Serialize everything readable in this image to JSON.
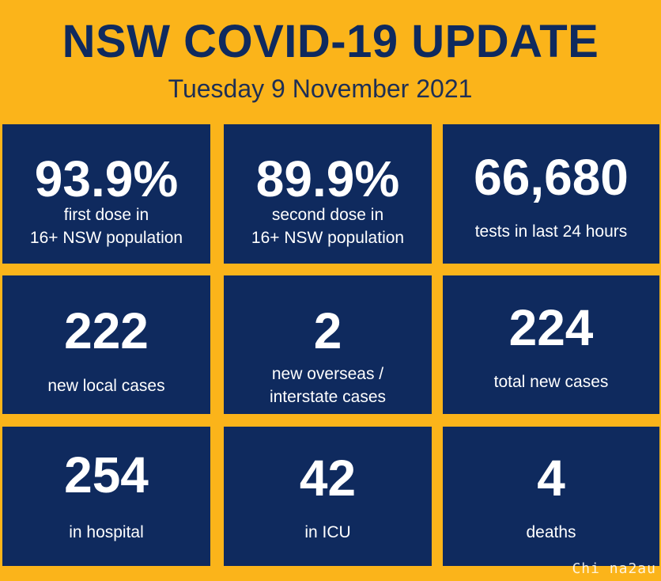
{
  "header": {
    "title": "NSW COVID-19 UPDATE",
    "date": "Tuesday 9 November 2021"
  },
  "tiles": [
    {
      "value": "93.9%",
      "label_line1": "first dose in",
      "label_line2": "16+ NSW population"
    },
    {
      "value": "89.9%",
      "label_line1": "second dose in",
      "label_line2": "16+ NSW population"
    },
    {
      "value": "66,680",
      "label_line1": "tests in last 24 hours",
      "label_line2": ""
    },
    {
      "value": "222",
      "label_line1": "new local cases",
      "label_line2": ""
    },
    {
      "value": "2",
      "label_line1": "new overseas /",
      "label_line2": "interstate cases"
    },
    {
      "value": "224",
      "label_line1": "total new cases",
      "label_line2": ""
    },
    {
      "value": "254",
      "label_line1": "in hospital",
      "label_line2": ""
    },
    {
      "value": "42",
      "label_line1": "in ICU",
      "label_line2": ""
    },
    {
      "value": "4",
      "label_line1": "deaths",
      "label_line2": ""
    }
  ],
  "watermark": "Chi na2au",
  "colors": {
    "background": "#FBB41A",
    "tile": "#0F2A5E",
    "title": "#0F2A5E",
    "text": "#FFFFFF"
  }
}
